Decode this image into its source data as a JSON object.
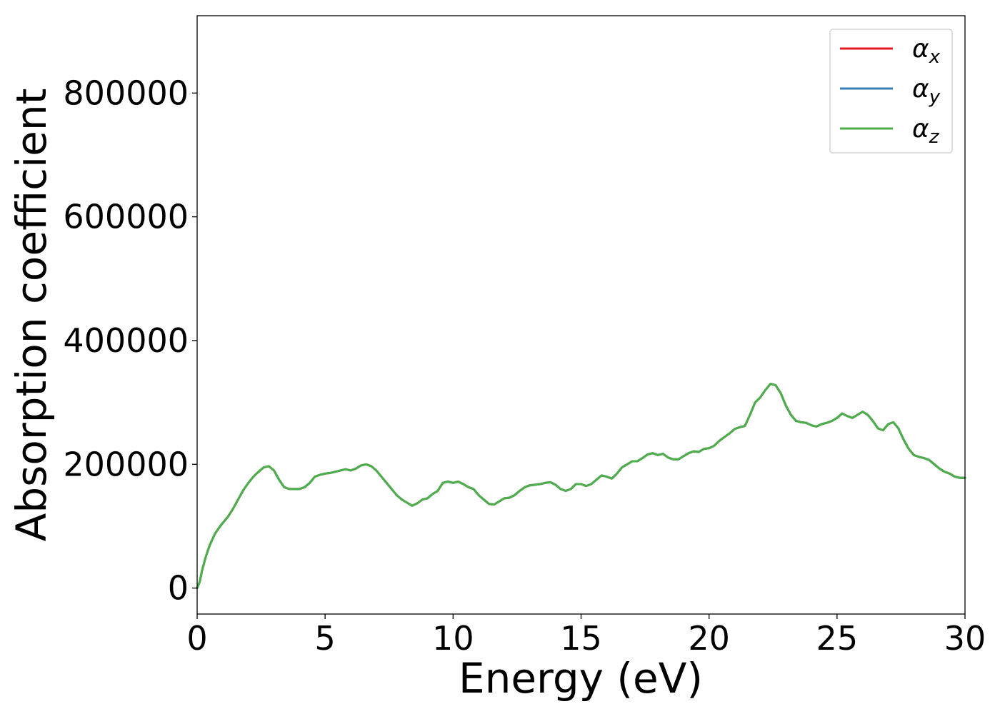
{
  "chart_data": {
    "type": "line",
    "title": "",
    "xlabel": "Energy (eV)",
    "ylabel": "Absorption coefficient",
    "xlim": [
      0,
      30
    ],
    "ylim": [
      -42000,
      925000
    ],
    "xticks": [
      0,
      5,
      10,
      15,
      20,
      25,
      30
    ],
    "yticks": [
      0,
      200000,
      400000,
      600000,
      800000
    ],
    "grid": false,
    "legend_position": "top-right",
    "series": [
      {
        "name": "α",
        "subscript": "x",
        "color": "#e41a1c",
        "x": [
          0,
          0.1,
          0.2,
          0.35,
          0.5,
          0.7,
          0.9,
          1.0,
          1.2,
          1.4,
          1.6,
          1.8,
          2.0,
          2.2,
          2.4,
          2.6,
          2.8,
          3.0,
          3.2,
          3.4,
          3.6,
          3.8,
          4.0,
          4.2,
          4.4,
          4.6,
          4.8,
          5.0,
          5.2,
          5.4,
          5.6,
          5.8,
          6.0,
          6.2,
          6.4,
          6.6,
          6.8,
          7.0,
          7.2,
          7.4,
          7.6,
          7.8,
          8.0,
          8.2,
          8.4,
          8.6,
          8.8,
          9.0,
          9.2,
          9.4,
          9.6,
          9.8,
          10.0,
          10.2,
          10.4,
          10.6,
          10.8,
          11.0,
          11.2,
          11.4,
          11.6,
          11.8,
          12.0,
          12.2,
          12.4,
          12.6,
          12.8,
          13.0,
          13.2,
          13.4,
          13.6,
          13.8,
          14.0,
          14.2,
          14.4,
          14.6,
          14.8,
          15.0,
          15.2,
          15.4,
          15.6,
          15.8,
          16.0,
          16.2,
          16.4,
          16.6,
          16.8,
          17.0,
          17.2,
          17.4,
          17.6,
          17.8,
          18.0,
          18.2,
          18.4,
          18.6,
          18.8,
          19.0,
          19.2,
          19.4,
          19.6,
          19.8,
          20.0,
          20.2,
          20.4,
          20.6,
          20.8,
          21.0,
          21.2,
          21.4,
          21.6,
          21.8,
          22.0,
          22.2,
          22.4,
          22.6,
          22.8,
          23.0,
          23.2,
          23.4,
          23.6,
          23.8,
          24.0,
          24.2,
          24.4,
          24.6,
          24.8,
          25.0,
          25.2,
          25.4,
          25.6,
          25.8,
          26.0,
          26.2,
          26.4,
          26.6,
          26.8,
          27.0,
          27.2,
          27.4,
          27.6,
          27.8,
          28.0,
          28.2,
          28.4,
          28.6,
          28.8,
          29.0,
          29.2,
          29.4,
          29.6,
          29.8,
          30.0
        ],
        "y": [
          0,
          10000,
          30000,
          52000,
          70000,
          88000,
          100000,
          105000,
          115000,
          128000,
          143000,
          158000,
          170000,
          180000,
          188000,
          195000,
          197000,
          190000,
          175000,
          163000,
          160000,
          160000,
          160000,
          163000,
          170000,
          180000,
          183000,
          185000,
          186000,
          188000,
          190000,
          192000,
          190000,
          193000,
          198000,
          200000,
          197000,
          190000,
          180000,
          170000,
          160000,
          150000,
          143000,
          138000,
          133000,
          137000,
          143000,
          145000,
          152000,
          157000,
          170000,
          172000,
          170000,
          172000,
          168000,
          163000,
          160000,
          150000,
          143000,
          136000,
          135000,
          140000,
          145000,
          146000,
          150000,
          157000,
          163000,
          166000,
          167000,
          168000,
          170000,
          171000,
          167000,
          160000,
          157000,
          160000,
          168000,
          168000,
          165000,
          168000,
          175000,
          182000,
          180000,
          177000,
          185000,
          195000,
          200000,
          205000,
          205000,
          210000,
          216000,
          218000,
          215000,
          217000,
          211000,
          208000,
          208000,
          213000,
          218000,
          221000,
          220000,
          225000,
          226000,
          230000,
          238000,
          244000,
          250000,
          257000,
          260000,
          262000,
          280000,
          300000,
          308000,
          320000,
          330000,
          328000,
          315000,
          295000,
          280000,
          270000,
          268000,
          267000,
          263000,
          261000,
          265000,
          267000,
          270000,
          275000,
          282000,
          278000,
          275000,
          280000,
          285000,
          280000,
          270000,
          258000,
          255000,
          265000,
          268000,
          258000,
          240000,
          225000,
          215000,
          212000,
          210000,
          207000,
          200000,
          193000,
          188000,
          185000,
          180000,
          178000,
          178000
        ]
      },
      {
        "name": "α",
        "subscript": "y",
        "color": "#377eb8",
        "x": [
          0,
          0.1,
          0.2,
          0.35,
          0.5,
          0.7,
          0.9,
          1.0,
          1.2,
          1.4,
          1.6,
          1.8,
          2.0,
          2.2,
          2.4,
          2.6,
          2.8,
          3.0,
          3.2,
          3.4,
          3.6,
          3.8,
          4.0,
          4.2,
          4.4,
          4.6,
          4.8,
          5.0,
          5.2,
          5.4,
          5.6,
          5.8,
          6.0,
          6.2,
          6.4,
          6.6,
          6.8,
          7.0,
          7.2,
          7.4,
          7.6,
          7.8,
          8.0,
          8.2,
          8.4,
          8.6,
          8.8,
          9.0,
          9.2,
          9.4,
          9.6,
          9.8,
          10.0,
          10.2,
          10.4,
          10.6,
          10.8,
          11.0,
          11.2,
          11.4,
          11.6,
          11.8,
          12.0,
          12.2,
          12.4,
          12.6,
          12.8,
          13.0,
          13.2,
          13.4,
          13.6,
          13.8,
          14.0,
          14.2,
          14.4,
          14.6,
          14.8,
          15.0,
          15.2,
          15.4,
          15.6,
          15.8,
          16.0,
          16.2,
          16.4,
          16.6,
          16.8,
          17.0,
          17.2,
          17.4,
          17.6,
          17.8,
          18.0,
          18.2,
          18.4,
          18.6,
          18.8,
          19.0,
          19.2,
          19.4,
          19.6,
          19.8,
          20.0,
          20.2,
          20.4,
          20.6,
          20.8,
          21.0,
          21.2,
          21.4,
          21.6,
          21.8,
          22.0,
          22.2,
          22.4,
          22.6,
          22.8,
          23.0,
          23.2,
          23.4,
          23.6,
          23.8,
          24.0,
          24.2,
          24.4,
          24.6,
          24.8,
          25.0,
          25.2,
          25.4,
          25.6,
          25.8,
          26.0,
          26.2,
          26.4,
          26.6,
          26.8,
          27.0,
          27.2,
          27.4,
          27.6,
          27.8,
          28.0,
          28.2,
          28.4,
          28.6,
          28.8,
          29.0,
          29.2,
          29.4,
          29.6,
          29.8,
          30.0
        ],
        "y": [
          0,
          10000,
          30000,
          52000,
          70000,
          88000,
          100000,
          105000,
          115000,
          128000,
          143000,
          158000,
          170000,
          180000,
          188000,
          195000,
          197000,
          190000,
          175000,
          163000,
          160000,
          160000,
          160000,
          163000,
          170000,
          180000,
          183000,
          185000,
          186000,
          188000,
          190000,
          192000,
          190000,
          193000,
          198000,
          200000,
          197000,
          190000,
          180000,
          170000,
          160000,
          150000,
          143000,
          138000,
          133000,
          137000,
          143000,
          145000,
          152000,
          157000,
          170000,
          172000,
          170000,
          172000,
          168000,
          163000,
          160000,
          150000,
          143000,
          136000,
          135000,
          140000,
          145000,
          146000,
          150000,
          157000,
          163000,
          166000,
          167000,
          168000,
          170000,
          171000,
          167000,
          160000,
          157000,
          160000,
          168000,
          168000,
          165000,
          168000,
          175000,
          182000,
          180000,
          177000,
          185000,
          195000,
          200000,
          205000,
          205000,
          210000,
          216000,
          218000,
          215000,
          217000,
          211000,
          208000,
          208000,
          213000,
          218000,
          221000,
          220000,
          225000,
          226000,
          230000,
          238000,
          244000,
          250000,
          257000,
          260000,
          262000,
          280000,
          300000,
          308000,
          320000,
          330000,
          328000,
          315000,
          295000,
          280000,
          270000,
          268000,
          267000,
          263000,
          261000,
          265000,
          267000,
          270000,
          275000,
          282000,
          278000,
          275000,
          280000,
          285000,
          280000,
          270000,
          258000,
          255000,
          265000,
          268000,
          258000,
          240000,
          225000,
          215000,
          212000,
          210000,
          207000,
          200000,
          193000,
          188000,
          185000,
          180000,
          178000,
          178000
        ]
      },
      {
        "name": "α",
        "subscript": "z",
        "color": "#4daf4a",
        "x": [
          0,
          0.1,
          0.2,
          0.35,
          0.5,
          0.7,
          0.9,
          1.0,
          1.2,
          1.4,
          1.6,
          1.8,
          2.0,
          2.2,
          2.4,
          2.6,
          2.8,
          3.0,
          3.2,
          3.4,
          3.6,
          3.8,
          4.0,
          4.2,
          4.4,
          4.6,
          4.8,
          5.0,
          5.2,
          5.4,
          5.6,
          5.8,
          6.0,
          6.2,
          6.4,
          6.6,
          6.8,
          7.0,
          7.2,
          7.4,
          7.6,
          7.8,
          8.0,
          8.2,
          8.4,
          8.6,
          8.8,
          9.0,
          9.2,
          9.4,
          9.6,
          9.8,
          10.0,
          10.2,
          10.4,
          10.6,
          10.8,
          11.0,
          11.2,
          11.4,
          11.6,
          11.8,
          12.0,
          12.2,
          12.4,
          12.6,
          12.8,
          13.0,
          13.2,
          13.4,
          13.6,
          13.8,
          14.0,
          14.2,
          14.4,
          14.6,
          14.8,
          15.0,
          15.2,
          15.4,
          15.6,
          15.8,
          16.0,
          16.2,
          16.4,
          16.6,
          16.8,
          17.0,
          17.2,
          17.4,
          17.6,
          17.8,
          18.0,
          18.2,
          18.4,
          18.6,
          18.8,
          19.0,
          19.2,
          19.4,
          19.6,
          19.8,
          20.0,
          20.2,
          20.4,
          20.6,
          20.8,
          21.0,
          21.2,
          21.4,
          21.6,
          21.8,
          22.0,
          22.2,
          22.4,
          22.6,
          22.8,
          23.0,
          23.2,
          23.4,
          23.6,
          23.8,
          24.0,
          24.2,
          24.4,
          24.6,
          24.8,
          25.0,
          25.2,
          25.4,
          25.6,
          25.8,
          26.0,
          26.2,
          26.4,
          26.6,
          26.8,
          27.0,
          27.2,
          27.4,
          27.6,
          27.8,
          28.0,
          28.2,
          28.4,
          28.6,
          28.8,
          29.0,
          29.2,
          29.4,
          29.6,
          29.8,
          30.0
        ],
        "y": [
          0,
          10000,
          30000,
          52000,
          70000,
          88000,
          100000,
          105000,
          115000,
          128000,
          143000,
          158000,
          170000,
          180000,
          188000,
          195000,
          197000,
          190000,
          175000,
          163000,
          160000,
          160000,
          160000,
          163000,
          170000,
          180000,
          183000,
          185000,
          186000,
          188000,
          190000,
          192000,
          190000,
          193000,
          198000,
          200000,
          197000,
          190000,
          180000,
          170000,
          160000,
          150000,
          143000,
          138000,
          133000,
          137000,
          143000,
          145000,
          152000,
          157000,
          170000,
          172000,
          170000,
          172000,
          168000,
          163000,
          160000,
          150000,
          143000,
          136000,
          135000,
          140000,
          145000,
          146000,
          150000,
          157000,
          163000,
          166000,
          167000,
          168000,
          170000,
          171000,
          167000,
          160000,
          157000,
          160000,
          168000,
          168000,
          165000,
          168000,
          175000,
          182000,
          180000,
          177000,
          185000,
          195000,
          200000,
          205000,
          205000,
          210000,
          216000,
          218000,
          215000,
          217000,
          211000,
          208000,
          208000,
          213000,
          218000,
          221000,
          220000,
          225000,
          226000,
          230000,
          238000,
          244000,
          250000,
          257000,
          260000,
          262000,
          280000,
          300000,
          308000,
          320000,
          330000,
          328000,
          315000,
          295000,
          280000,
          270000,
          268000,
          267000,
          263000,
          261000,
          265000,
          267000,
          270000,
          275000,
          282000,
          278000,
          275000,
          280000,
          285000,
          280000,
          270000,
          258000,
          255000,
          265000,
          268000,
          258000,
          240000,
          225000,
          215000,
          212000,
          210000,
          207000,
          200000,
          193000,
          188000,
          185000,
          180000,
          178000,
          178000
        ]
      }
    ]
  }
}
